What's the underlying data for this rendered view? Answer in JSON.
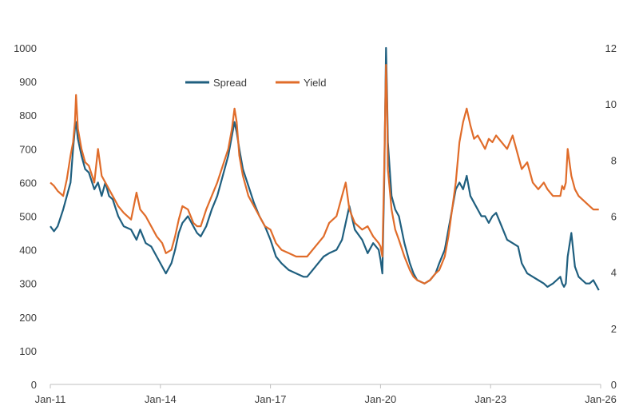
{
  "chart_data": {
    "type": "line",
    "title": "",
    "xlabel": "",
    "ylabel_left": "",
    "ylabel_right": "",
    "x_tick_labels": [
      "Jan-11",
      "Jan-14",
      "Jan-17",
      "Jan-20",
      "Jan-23",
      "Jan-26"
    ],
    "x_range": [
      2011.0,
      2026.0
    ],
    "y_left": {
      "range": [
        0,
        1000
      ],
      "ticks": [
        "0",
        "100",
        "200",
        "300",
        "400",
        "500",
        "600",
        "700",
        "800",
        "900",
        "1000"
      ]
    },
    "y_right": {
      "range": [
        0,
        12
      ],
      "ticks": [
        "0",
        "2",
        "4",
        "6",
        "8",
        "10",
        "12"
      ]
    },
    "gridlines": false,
    "legend_position": "top-center",
    "series": [
      {
        "name": "Spread",
        "axis": "left",
        "color": "#1f5f7f",
        "x": [
          2011.0,
          2011.1,
          2011.2,
          2011.35,
          2011.45,
          2011.55,
          2011.62,
          2011.67,
          2011.7,
          2011.75,
          2011.85,
          2011.95,
          2012.05,
          2012.2,
          2012.3,
          2012.4,
          2012.5,
          2012.6,
          2012.7,
          2012.85,
          2013.0,
          2013.2,
          2013.35,
          2013.45,
          2013.6,
          2013.75,
          2013.9,
          2014.05,
          2014.15,
          2014.3,
          2014.4,
          2014.5,
          2014.6,
          2014.75,
          2014.9,
          2015.0,
          2015.1,
          2015.25,
          2015.4,
          2015.55,
          2015.7,
          2015.85,
          2015.95,
          2016.02,
          2016.08,
          2016.15,
          2016.25,
          2016.4,
          2016.55,
          2016.7,
          2016.85,
          2017.0,
          2017.15,
          2017.3,
          2017.5,
          2017.7,
          2017.9,
          2018.0,
          2018.15,
          2018.3,
          2018.45,
          2018.6,
          2018.8,
          2018.95,
          2019.05,
          2019.15,
          2019.3,
          2019.5,
          2019.65,
          2019.8,
          2019.95,
          2020.0,
          2020.05,
          2020.1,
          2020.15,
          2020.18,
          2020.2,
          2020.25,
          2020.3,
          2020.4,
          2020.5,
          2020.65,
          2020.8,
          2020.9,
          2021.0,
          2021.2,
          2021.35,
          2021.5,
          2021.6,
          2021.75,
          2021.85,
          2021.95,
          2022.05,
          2022.15,
          2022.25,
          2022.35,
          2022.45,
          2022.55,
          2022.65,
          2022.75,
          2022.85,
          2022.95,
          2023.05,
          2023.15,
          2023.3,
          2023.45,
          2023.6,
          2023.75,
          2023.85,
          2024.0,
          2024.15,
          2024.3,
          2024.45,
          2024.55,
          2024.7,
          2024.8,
          2024.9,
          2024.95,
          2025.0,
          2025.05,
          2025.1,
          2025.2,
          2025.3,
          2025.4,
          2025.5,
          2025.6,
          2025.7,
          2025.8,
          2025.9,
          2025.95
        ],
        "values": [
          470,
          455,
          470,
          520,
          560,
          600,
          700,
          760,
          780,
          730,
          680,
          640,
          630,
          580,
          600,
          560,
          600,
          560,
          550,
          500,
          470,
          460,
          430,
          460,
          420,
          410,
          380,
          350,
          330,
          360,
          400,
          450,
          480,
          500,
          470,
          450,
          440,
          470,
          520,
          560,
          620,
          680,
          740,
          780,
          750,
          700,
          640,
          590,
          540,
          500,
          470,
          430,
          380,
          360,
          340,
          330,
          320,
          320,
          340,
          360,
          380,
          390,
          400,
          430,
          480,
          530,
          460,
          430,
          390,
          420,
          400,
          370,
          330,
          600,
          1000,
          850,
          720,
          640,
          560,
          520,
          500,
          420,
          360,
          330,
          310,
          300,
          310,
          330,
          360,
          400,
          460,
          520,
          580,
          600,
          580,
          620,
          560,
          540,
          520,
          500,
          500,
          480,
          500,
          510,
          470,
          430,
          420,
          410,
          360,
          330,
          320,
          310,
          300,
          290,
          300,
          310,
          320,
          300,
          290,
          300,
          380,
          450,
          350,
          320,
          310,
          300,
          300,
          310,
          290,
          280
        ]
      },
      {
        "name": "Yield",
        "axis": "left",
        "color": "#e06c2a",
        "x": [
          2011.0,
          2011.1,
          2011.2,
          2011.35,
          2011.45,
          2011.55,
          2011.62,
          2011.67,
          2011.7,
          2011.75,
          2011.85,
          2011.95,
          2012.05,
          2012.2,
          2012.3,
          2012.4,
          2012.5,
          2012.6,
          2012.7,
          2012.85,
          2013.0,
          2013.2,
          2013.35,
          2013.45,
          2013.6,
          2013.75,
          2013.9,
          2014.05,
          2014.15,
          2014.3,
          2014.4,
          2014.5,
          2014.6,
          2014.75,
          2014.9,
          2015.0,
          2015.1,
          2015.25,
          2015.4,
          2015.55,
          2015.7,
          2015.85,
          2015.95,
          2016.02,
          2016.08,
          2016.15,
          2016.25,
          2016.4,
          2016.55,
          2016.7,
          2016.85,
          2017.0,
          2017.15,
          2017.3,
          2017.5,
          2017.7,
          2017.9,
          2018.0,
          2018.15,
          2018.3,
          2018.45,
          2018.6,
          2018.8,
          2018.95,
          2019.05,
          2019.15,
          2019.3,
          2019.5,
          2019.65,
          2019.8,
          2019.95,
          2020.0,
          2020.05,
          2020.1,
          2020.15,
          2020.18,
          2020.2,
          2020.25,
          2020.3,
          2020.4,
          2020.5,
          2020.65,
          2020.8,
          2020.9,
          2021.0,
          2021.2,
          2021.35,
          2021.5,
          2021.6,
          2021.75,
          2021.85,
          2021.95,
          2022.05,
          2022.15,
          2022.25,
          2022.35,
          2022.45,
          2022.55,
          2022.65,
          2022.75,
          2022.85,
          2022.95,
          2023.05,
          2023.15,
          2023.3,
          2023.45,
          2023.6,
          2023.75,
          2023.85,
          2024.0,
          2024.15,
          2024.3,
          2024.45,
          2024.55,
          2024.7,
          2024.8,
          2024.9,
          2024.95,
          2025.0,
          2025.05,
          2025.1,
          2025.2,
          2025.3,
          2025.4,
          2025.5,
          2025.6,
          2025.7,
          2025.8,
          2025.9,
          2025.95
        ],
        "values": [
          600,
          590,
          575,
          560,
          610,
          680,
          720,
          780,
          860,
          760,
          700,
          660,
          650,
          600,
          700,
          620,
          600,
          580,
          560,
          530,
          510,
          490,
          570,
          520,
          500,
          470,
          440,
          420,
          390,
          400,
          440,
          490,
          530,
          520,
          480,
          470,
          470,
          520,
          560,
          600,
          650,
          700,
          760,
          820,
          780,
          680,
          620,
          560,
          530,
          500,
          470,
          460,
          420,
          400,
          390,
          380,
          380,
          380,
          400,
          420,
          440,
          480,
          500,
          560,
          600,
          520,
          480,
          460,
          470,
          440,
          420,
          410,
          380,
          640,
          950,
          820,
          640,
          580,
          520,
          460,
          430,
          380,
          340,
          320,
          310,
          300,
          310,
          330,
          340,
          380,
          440,
          520,
          600,
          720,
          780,
          820,
          770,
          730,
          740,
          720,
          700,
          730,
          720,
          740,
          720,
          700,
          740,
          680,
          640,
          660,
          600,
          580,
          600,
          580,
          560,
          560,
          560,
          590,
          580,
          600,
          700,
          620,
          580,
          560,
          550,
          540,
          530,
          520,
          520,
          520
        ]
      }
    ]
  },
  "legend": {
    "spread_label": "Spread",
    "yield_label": "Yield"
  }
}
